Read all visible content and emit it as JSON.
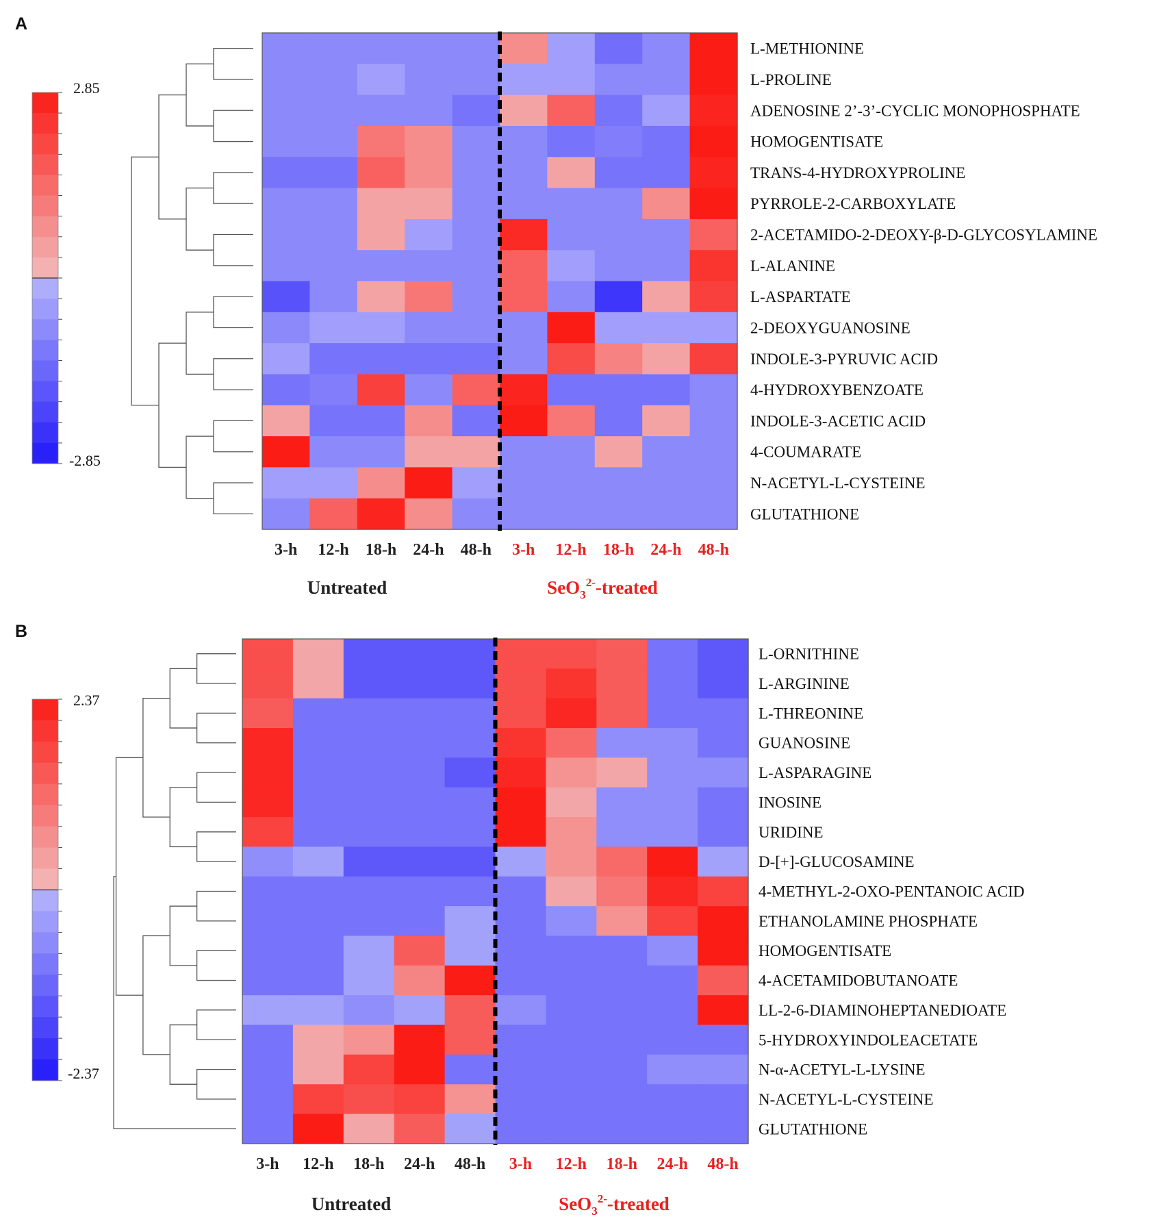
{
  "chart_data": [
    {
      "panel": "A",
      "type": "heatmap",
      "colorbar": {
        "max": 2.85,
        "min": -2.85,
        "max_label": "2.85",
        "min_label": "-2.85"
      },
      "groups": [
        {
          "label": "Untreated",
          "color": "#222222",
          "columns": [
            "3-h",
            "12-h",
            "18-h",
            "24-h",
            "48-h"
          ]
        },
        {
          "label_main": "SeO",
          "label_sub": "3",
          "label_sup": "2-",
          "label_tail": "-treated",
          "color": "#e8211f",
          "columns": [
            "3-h",
            "12-h",
            "18-h",
            "24-h",
            "48-h"
          ]
        }
      ],
      "rows": [
        "L-METHIONINE",
        "L-PROLINE",
        "ADENOSINE 2’-3’-CYCLIC MONOPHOSPHATE",
        "HOMOGENTISATE",
        "TRANS-4-HYDROXYPROLINE",
        "PYRROLE-2-CARBOXYLATE",
        "2-ACETAMIDO-2-DEOXY-β-D-GLYCOSYLAMINE",
        "L-ALANINE",
        "L-ASPARTATE",
        "2-DEOXYGUANOSINE",
        "INDOLE-3-PYRUVIC ACID",
        "4-HYDROXYBENZOATE",
        "INDOLE-3-ACETIC ACID",
        "4-COUMARATE",
        "N-ACETYL-L-CYSTEINE",
        "GLUTATHIONE"
      ],
      "values": [
        [
          -0.8,
          -0.8,
          -0.8,
          -0.8,
          -0.8,
          0.8,
          -0.4,
          -1.3,
          -0.8,
          2.85
        ],
        [
          -0.8,
          -0.8,
          -0.4,
          -0.8,
          -0.8,
          -0.4,
          -0.4,
          -0.8,
          -0.8,
          2.85
        ],
        [
          -0.8,
          -0.8,
          -0.8,
          -0.8,
          -1.2,
          0.4,
          1.6,
          -1.2,
          -0.4,
          2.7
        ],
        [
          -0.8,
          -0.8,
          1.2,
          0.8,
          -0.8,
          -0.8,
          -1.2,
          -1.0,
          -1.2,
          2.85
        ],
        [
          -1.2,
          -1.2,
          1.6,
          0.8,
          -0.8,
          -0.8,
          0.4,
          -1.2,
          -1.2,
          2.7
        ],
        [
          -0.8,
          -0.8,
          0.4,
          0.4,
          -0.8,
          -0.8,
          -0.8,
          -0.8,
          0.8,
          2.85
        ],
        [
          -0.8,
          -0.8,
          0.4,
          -0.4,
          -0.8,
          2.6,
          -0.8,
          -0.8,
          -0.8,
          1.6
        ],
        [
          -0.8,
          -0.8,
          -0.8,
          -0.8,
          -0.8,
          1.6,
          -0.4,
          -0.8,
          -0.8,
          2.4
        ],
        [
          -1.8,
          -0.8,
          0.4,
          1.2,
          -0.8,
          1.6,
          -0.8,
          -2.3,
          0.4,
          2.2
        ],
        [
          -0.8,
          -0.4,
          -0.4,
          -0.8,
          -0.8,
          -0.8,
          2.85,
          -0.4,
          -0.4,
          -0.4
        ],
        [
          -0.4,
          -1.2,
          -1.2,
          -1.2,
          -1.2,
          -0.8,
          2.0,
          1.0,
          0.4,
          2.2
        ],
        [
          -1.2,
          -1.0,
          2.2,
          -0.8,
          1.6,
          2.7,
          -1.2,
          -1.2,
          -1.2,
          -0.8
        ],
        [
          0.4,
          -1.2,
          -1.2,
          0.8,
          -1.2,
          2.85,
          1.2,
          -1.2,
          0.4,
          -0.8
        ],
        [
          2.85,
          -0.8,
          -0.8,
          0.4,
          0.4,
          -0.8,
          -0.8,
          0.4,
          -0.8,
          -0.8
        ],
        [
          -0.4,
          -0.4,
          0.8,
          2.85,
          -0.4,
          -0.8,
          -0.8,
          -0.8,
          -0.8,
          -0.8
        ],
        [
          -0.8,
          1.6,
          2.7,
          0.8,
          -0.8,
          -0.8,
          -0.8,
          -0.8,
          -0.8,
          -0.8
        ]
      ]
    },
    {
      "panel": "B",
      "type": "heatmap",
      "colorbar": {
        "max": 2.37,
        "min": -2.37,
        "max_label": "2.37",
        "min_label": "-2.37"
      },
      "groups": [
        {
          "label": "Untreated",
          "color": "#222222",
          "columns": [
            "3-h",
            "12-h",
            "18-h",
            "24-h",
            "48-h"
          ]
        },
        {
          "label_main": "SeO",
          "label_sub": "3",
          "label_sup": "2-",
          "label_tail": "-treated",
          "color": "#e8211f",
          "columns": [
            "3-h",
            "12-h",
            "18-h",
            "24-h",
            "48-h"
          ]
        }
      ],
      "rows": [
        "L-ORNITHINE",
        "L-ARGININE",
        "L-THREONINE",
        "GUANOSINE",
        "L-ASPARAGINE",
        "INOSINE",
        "URIDINE",
        "D-[+]-GLUCOSAMINE",
        "4-METHYL-2-OXO-PENTANOIC ACID",
        "ETHANOLAMINE PHOSPHATE",
        "HOMOGENTISATE",
        "4-ACETAMIDOBUTANOATE",
        "LL-2-6-DIAMINOHEPTANEDIOATE",
        "5-HYDROXYINDOLEACETATE",
        "N-α-ACETYL-L-LYSINE",
        "N-ACETYL-L-CYSTEINE",
        "GLUTATHIONE"
      ],
      "values": [
        [
          1.6,
          0.3,
          -1.4,
          -1.4,
          -1.4,
          1.6,
          1.6,
          1.4,
          -1.0,
          -1.4
        ],
        [
          1.6,
          0.3,
          -1.4,
          -1.4,
          -1.4,
          1.6,
          2.0,
          1.4,
          -1.0,
          -1.4
        ],
        [
          1.4,
          -1.0,
          -1.0,
          -1.0,
          -1.0,
          1.6,
          2.2,
          1.4,
          -1.0,
          -1.0
        ],
        [
          2.2,
          -1.0,
          -1.0,
          -1.0,
          -1.0,
          2.0,
          1.2,
          -0.6,
          -0.6,
          -1.0
        ],
        [
          2.2,
          -1.0,
          -1.0,
          -1.0,
          -1.4,
          2.2,
          0.6,
          0.3,
          -0.6,
          -0.6
        ],
        [
          2.2,
          -1.0,
          -1.0,
          -1.0,
          -1.0,
          2.37,
          0.3,
          -0.6,
          -0.6,
          -1.0
        ],
        [
          1.8,
          -1.0,
          -1.0,
          -1.0,
          -1.0,
          2.37,
          0.6,
          -0.6,
          -0.6,
          -1.0
        ],
        [
          -0.6,
          -0.3,
          -1.4,
          -1.4,
          -1.4,
          -0.3,
          0.6,
          1.2,
          2.37,
          -0.3
        ],
        [
          -1.0,
          -1.0,
          -1.0,
          -1.0,
          -1.0,
          -1.0,
          0.3,
          1.0,
          2.2,
          1.8
        ],
        [
          -1.0,
          -1.0,
          -1.0,
          -1.0,
          -0.3,
          -1.0,
          -0.6,
          0.6,
          1.8,
          2.37
        ],
        [
          -1.0,
          -1.0,
          -0.3,
          1.4,
          -0.3,
          -1.0,
          -1.0,
          -1.0,
          -0.6,
          2.37
        ],
        [
          -1.0,
          -1.0,
          -0.3,
          0.8,
          2.37,
          -1.0,
          -1.0,
          -1.0,
          -1.0,
          1.4
        ],
        [
          -0.3,
          -0.3,
          -0.6,
          -0.3,
          1.4,
          -0.6,
          -1.0,
          -1.0,
          -1.0,
          2.37
        ],
        [
          -1.0,
          0.3,
          0.6,
          2.37,
          1.4,
          -1.0,
          -1.0,
          -1.0,
          -1.0,
          -1.0
        ],
        [
          -1.0,
          0.3,
          1.8,
          2.37,
          -1.0,
          -1.0,
          -1.0,
          -1.0,
          -0.6,
          -0.6
        ],
        [
          -1.0,
          1.8,
          1.6,
          1.8,
          0.6,
          -1.0,
          -1.0,
          -1.0,
          -1.0,
          -1.0
        ],
        [
          -1.0,
          2.37,
          0.3,
          1.4,
          -0.3,
          -1.0,
          -1.0,
          -1.0,
          -1.0,
          -1.0
        ]
      ]
    }
  ]
}
